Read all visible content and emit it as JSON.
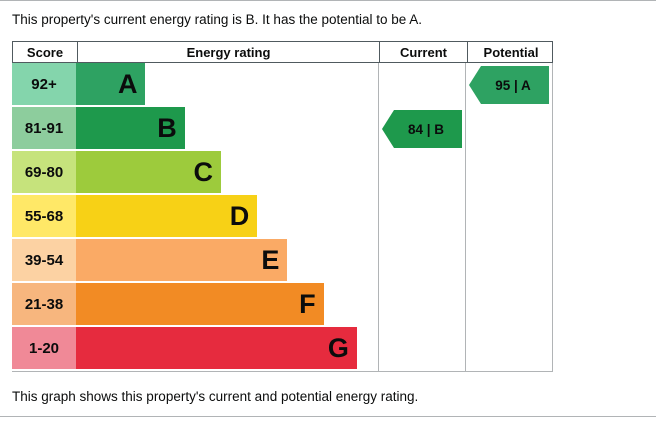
{
  "page": {
    "top_text": "This property's current energy rating is B. It has the potential to be A.",
    "bottom_text": "This graph shows this property's current and potential energy rating."
  },
  "table": {
    "headers": {
      "score": "Score",
      "rating": "Energy rating",
      "current": "Current",
      "potential": "Potential"
    }
  },
  "chart_data": {
    "type": "bar",
    "title": "Energy efficiency rating chart",
    "bands": [
      {
        "score": "92+",
        "letter": "A",
        "bar_color": "#2ea262",
        "score_bg": "#84d5ac",
        "width_pct": 23
      },
      {
        "score": "81-91",
        "letter": "B",
        "bar_color": "#1e994c",
        "score_bg": "#8dcd9d",
        "width_pct": 36
      },
      {
        "score": "69-80",
        "letter": "C",
        "bar_color": "#9dcb3c",
        "score_bg": "#c6e37c",
        "width_pct": 48
      },
      {
        "score": "55-68",
        "letter": "D",
        "bar_color": "#f7d116",
        "score_bg": "#ffe867",
        "width_pct": 60
      },
      {
        "score": "39-54",
        "letter": "E",
        "bar_color": "#faaa65",
        "score_bg": "#fcd2a3",
        "width_pct": 70
      },
      {
        "score": "21-38",
        "letter": "F",
        "bar_color": "#f28b24",
        "score_bg": "#f7b67e",
        "width_pct": 82
      },
      {
        "score": "1-20",
        "letter": "G",
        "bar_color": "#e62b3e",
        "score_bg": "#f08997",
        "width_pct": 93
      }
    ],
    "current": {
      "value": 84,
      "band": "B",
      "label": "84 | B",
      "row_index": 1,
      "color": "#1e994c"
    },
    "potential": {
      "value": 95,
      "band": "A",
      "label": "95 | A",
      "row_index": 0,
      "color": "#2ea262"
    }
  }
}
